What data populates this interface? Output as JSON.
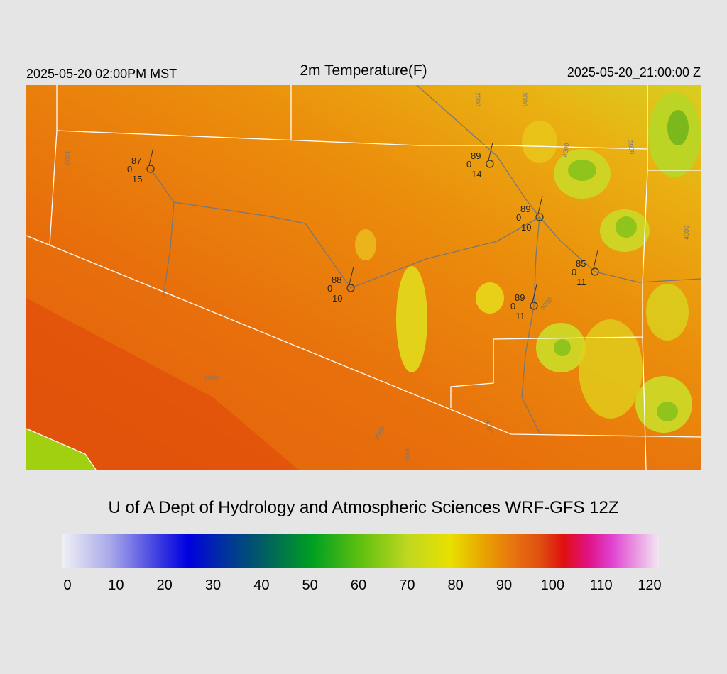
{
  "header": {
    "left": "2025-05-20 02:00PM MST",
    "title": "2m Temperature(F)",
    "right": "2025-05-20_21:00:00 Z"
  },
  "stations": [
    {
      "temp": 87,
      "code": 0,
      "bottom": 15
    },
    {
      "temp": 89,
      "code": 0,
      "bottom": 14
    },
    {
      "temp": 89,
      "code": 0,
      "bottom": 10
    },
    {
      "temp": 85,
      "code": 0,
      "bottom": 11
    },
    {
      "temp": 88,
      "code": 0,
      "bottom": 10
    },
    {
      "temp": 89,
      "code": 0,
      "bottom": 11
    }
  ],
  "contour_labels": [
    "1000",
    "2000",
    "3000",
    "4000",
    "3000",
    "4000",
    "2000",
    "3000",
    "3000",
    "4000",
    "3000"
  ],
  "credit": "U of A Dept of Hydrology and Atmospheric Sciences WRF-GFS 12Z",
  "colorbar": {
    "ticks": [
      0,
      10,
      20,
      30,
      40,
      50,
      60,
      70,
      80,
      90,
      100,
      110,
      120
    ]
  }
}
